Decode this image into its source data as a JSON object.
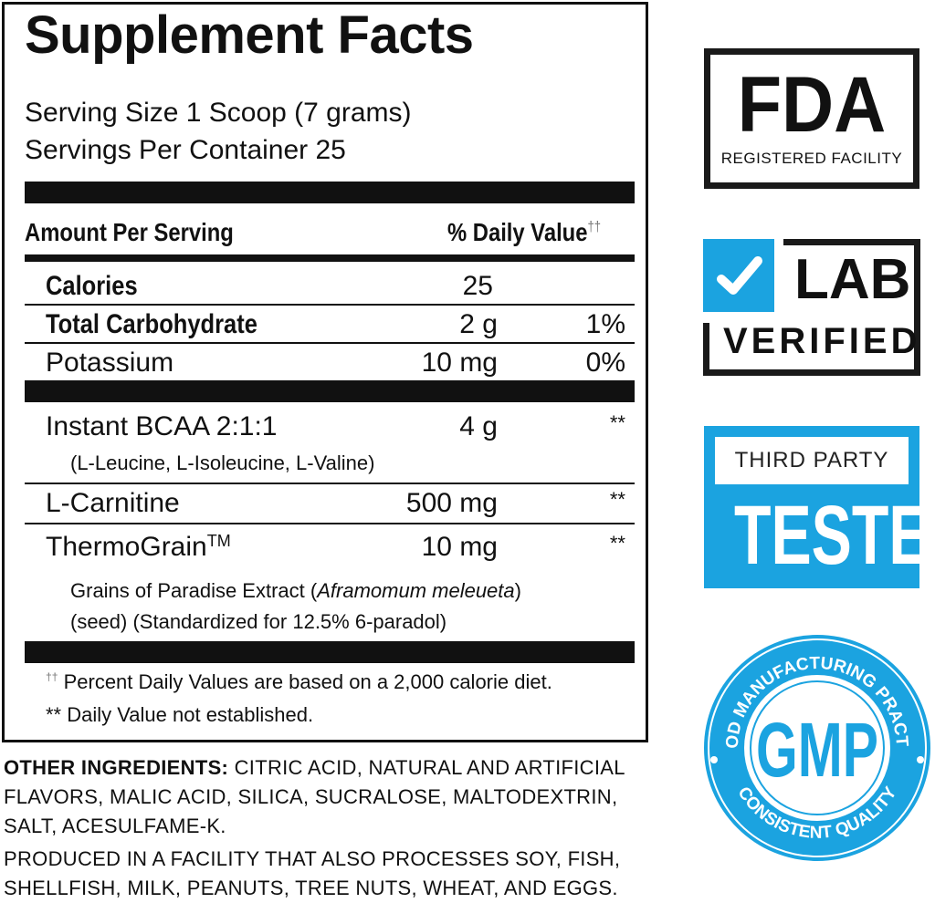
{
  "label": {
    "title": "Supplement Facts",
    "serving_size": "Serving Size 1 Scoop (7 grams)",
    "servings_per_container": "Servings Per Container 25",
    "header_amount": "Amount Per Serving",
    "header_dv": "% Daily Value",
    "header_dv_mark": "††",
    "rows": [
      {
        "name": "Calories",
        "amount": "25",
        "dv": ""
      },
      {
        "name": "Total Carbohydrate",
        "amount": "2 g",
        "dv": "1%"
      },
      {
        "name": "Potassium",
        "amount": "10 mg",
        "dv": "0%"
      },
      {
        "name": "Instant BCAA 2:1:1",
        "amount": "4 g",
        "dv": "**",
        "sub": "(L-Leucine, L-Isoleucine, L-Valine)"
      },
      {
        "name": "L-Carnitine",
        "amount": "500 mg",
        "dv": "**"
      },
      {
        "name": "ThermoGrain",
        "tm": "TM",
        "amount": "10 mg",
        "dv": "**",
        "sub1_a": "Grains of Paradise Extract (",
        "sub1_italic": "Aframomum meleueta",
        "sub1_b": ")",
        "sub2": "(seed) (Standardized for 12.5% 6-paradol)"
      }
    ],
    "footnote_mark": "††",
    "footnote1": "Percent Daily Values are based on a 2,000 calorie diet.",
    "footnote2": "** Daily Value not established."
  },
  "other_ingredients": {
    "label": "OTHER INGREDIENTS:",
    "text": "CITRIC ACID, NATURAL AND ARTIFICIAL FLAVORS, MALIC ACID, SILICA, SUCRALOSE, MALTODEXTRIN, SALT, ACESULFAME-K."
  },
  "allergen": "PRODUCED IN A FACILITY THAT ALSO PROCESSES SOY, FISH, SHELLFISH, MILK, PEANUTS, TREE NUTS, WHEAT, AND EGGS.",
  "badges": {
    "fda": {
      "main": "FDA",
      "sub": "REGISTERED FACILITY"
    },
    "lab": {
      "line1": "LAB",
      "line2": "VERIFIED",
      "icon": "checkmark-icon"
    },
    "third_party": {
      "line1": "THIRD PARTY",
      "line2": "TESTED"
    },
    "gmp": {
      "main": "GMP",
      "arc_top": "GOOD MANUFACTURING PRACTICE",
      "arc_bottom": "CONSISTENT QUALITY"
    },
    "accent": "#1ba3e0"
  }
}
